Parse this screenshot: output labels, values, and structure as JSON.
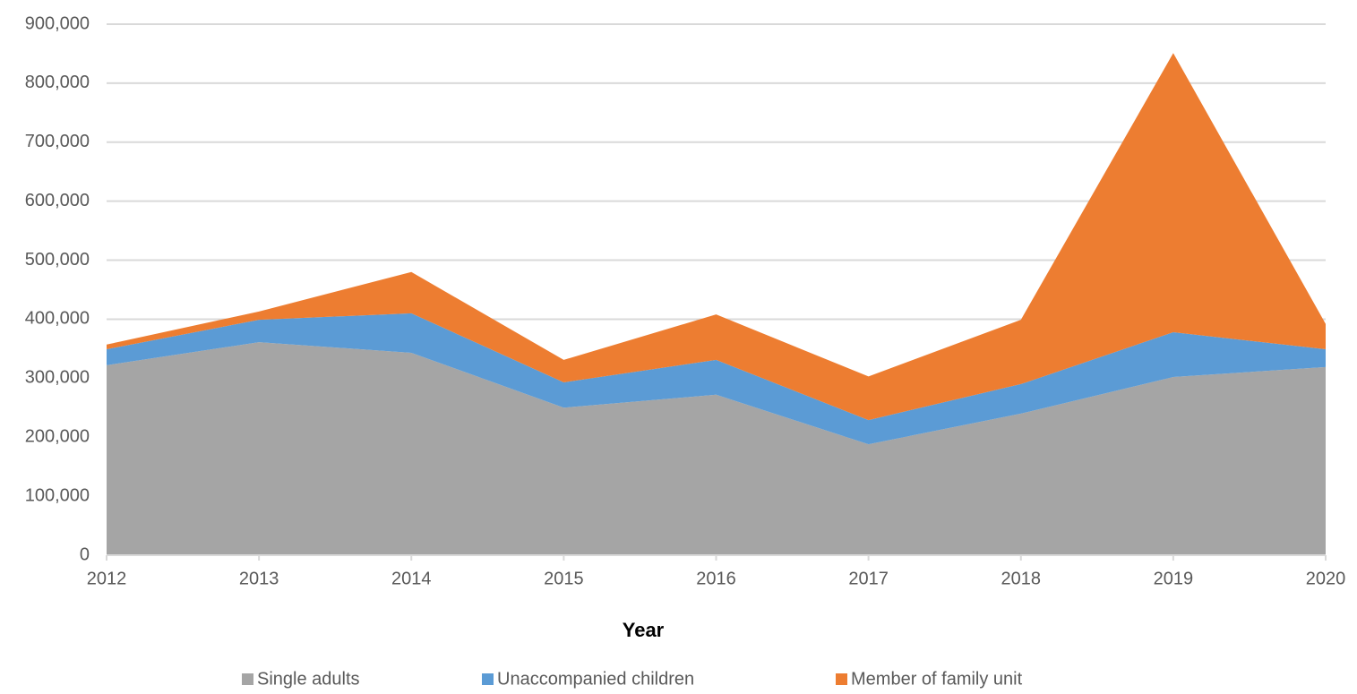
{
  "chart_data": {
    "type": "stacked_area",
    "x_label": "Year",
    "x": [
      2012,
      2013,
      2014,
      2015,
      2016,
      2017,
      2018,
      2019,
      2020
    ],
    "xlim": [
      2012,
      2020
    ],
    "series": [
      {
        "name": "Single adults",
        "color": "#a5a5a5",
        "values": [
          322000,
          361000,
          343000,
          250000,
          272000,
          188000,
          240000,
          302000,
          319000
        ]
      },
      {
        "name": "Unaccompanied children",
        "color": "#5b9bd5",
        "values": [
          27000,
          38000,
          67000,
          43000,
          59000,
          41000,
          50000,
          76000,
          30000
        ]
      },
      {
        "name": "Member of family unit",
        "color": "#ed7d31",
        "values": [
          8000,
          14000,
          70000,
          38000,
          77000,
          74000,
          109000,
          473000,
          43000
        ]
      }
    ],
    "ylim": [
      0,
      900000
    ],
    "yticks": [
      0,
      {
        "value": 100000,
        "label": "100,000"
      },
      {
        "value": 200000,
        "label": "200,000"
      },
      {
        "value": 300000,
        "label": "300,000"
      },
      {
        "value": 400000,
        "label": "400,000"
      },
      {
        "value": 500000,
        "label": "500,000"
      },
      {
        "value": 600000,
        "label": "600,000"
      },
      {
        "value": 700000,
        "label": "700,000"
      },
      {
        "value": 800000,
        "label": "800,000"
      },
      {
        "value": 900000,
        "label": "900,000"
      }
    ],
    "grid": true,
    "legend": "bottom"
  }
}
